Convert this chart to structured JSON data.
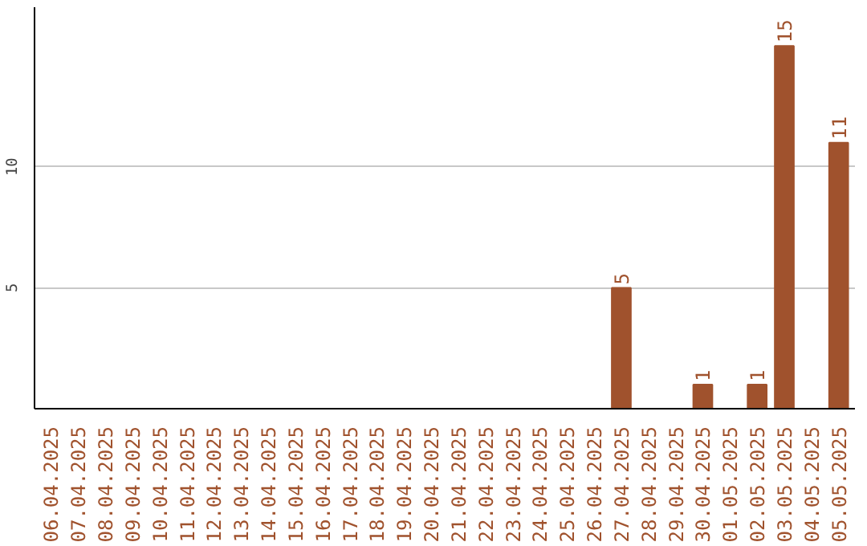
{
  "chart_data": {
    "type": "bar",
    "categories": [
      "06.04.2025",
      "07.04.2025",
      "08.04.2025",
      "09.04.2025",
      "10.04.2025",
      "11.04.2025",
      "12.04.2025",
      "13.04.2025",
      "14.04.2025",
      "15.04.2025",
      "16.04.2025",
      "17.04.2025",
      "18.04.2025",
      "19.04.2025",
      "20.04.2025",
      "21.04.2025",
      "22.04.2025",
      "23.04.2025",
      "24.04.2025",
      "25.04.2025",
      "26.04.2025",
      "27.04.2025",
      "28.04.2025",
      "29.04.2025",
      "30.04.2025",
      "01.05.2025",
      "02.05.2025",
      "03.05.2025",
      "04.05.2025",
      "05.05.2025"
    ],
    "values": [
      0,
      0,
      0,
      0,
      0,
      0,
      0,
      0,
      0,
      0,
      0,
      0,
      0,
      0,
      0,
      0,
      0,
      0,
      0,
      0,
      0,
      5,
      0,
      0,
      1,
      0,
      1,
      15,
      0,
      11
    ],
    "value_labels": [
      null,
      null,
      null,
      null,
      null,
      null,
      null,
      null,
      null,
      null,
      null,
      null,
      null,
      null,
      null,
      null,
      null,
      null,
      null,
      null,
      null,
      "5",
      null,
      null,
      "1",
      null,
      "1",
      "15",
      null,
      "11"
    ],
    "color": "#a0522d",
    "ylim": [
      0,
      16.6
    ],
    "yticks": [
      5,
      10
    ],
    "grid": "y"
  }
}
